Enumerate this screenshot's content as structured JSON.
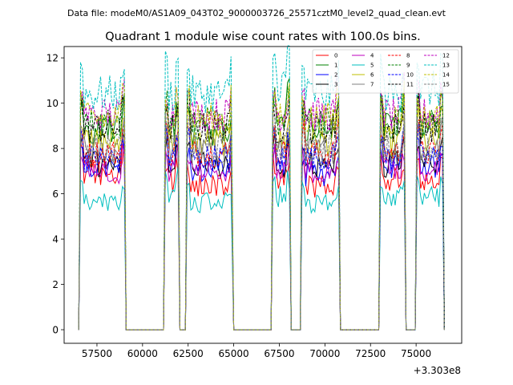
{
  "header": {
    "data_file": "Data file: modeM0/AS1A09_043T02_9000003726_25571cztM0_level2_quad_clean.evt"
  },
  "chart_data": {
    "type": "line",
    "title": "Quadrant 1 module wise count rates with 100.0s bins.",
    "xlabel": "",
    "ylabel": "",
    "x_offset_label": "+3.303e8",
    "xlim": [
      55700,
      77500
    ],
    "ylim": [
      -0.6,
      12.5
    ],
    "xticks": [
      57500,
      60000,
      62500,
      65000,
      67500,
      70000,
      72500,
      75000
    ],
    "yticks": [
      0,
      2,
      4,
      6,
      8,
      10,
      12
    ],
    "legend_position": "top-right",
    "segments": [
      [
        56600,
        59000
      ],
      [
        61250,
        61950
      ],
      [
        62450,
        64900
      ],
      [
        67150,
        68050
      ],
      [
        68750,
        70750
      ],
      [
        73050,
        74350
      ],
      [
        75050,
        76450
      ]
    ],
    "series": [
      {
        "name": "0",
        "color": "#ff0000",
        "dash": "solid",
        "level": 6.6,
        "seg_scale": [
          1.05,
          1.0,
          0.97,
          1.0,
          0.96,
          1.0,
          1.0
        ]
      },
      {
        "name": "1",
        "color": "#008000",
        "dash": "solid",
        "level": 8.8,
        "seg_scale": [
          1.0,
          1.0,
          1.0,
          1.05,
          1.02,
          1.04,
          1.02
        ]
      },
      {
        "name": "2",
        "color": "#0000ff",
        "dash": "solid",
        "level": 7.2,
        "seg_scale": [
          1.0,
          1.0,
          0.98,
          1.0,
          0.95,
          1.0,
          1.0
        ]
      },
      {
        "name": "3",
        "color": "#000000",
        "dash": "solid",
        "level": 7.3,
        "seg_scale": [
          1.0,
          1.0,
          1.0,
          1.0,
          1.0,
          1.0,
          1.0
        ]
      },
      {
        "name": "4",
        "color": "#bf00bf",
        "dash": "solid",
        "level": 7.0,
        "seg_scale": [
          1.0,
          1.0,
          1.0,
          1.0,
          1.0,
          1.0,
          1.0
        ]
      },
      {
        "name": "5",
        "color": "#00bfbf",
        "dash": "solid",
        "level": 5.6,
        "seg_scale": [
          1.0,
          1.08,
          1.0,
          1.05,
          1.0,
          1.05,
          1.05
        ]
      },
      {
        "name": "6",
        "color": "#bfbf00",
        "dash": "solid",
        "level": 8.3,
        "seg_scale": [
          1.0,
          1.0,
          1.0,
          1.0,
          1.0,
          1.0,
          1.0
        ]
      },
      {
        "name": "7",
        "color": "#808080",
        "dash": "solid",
        "level": 7.9,
        "seg_scale": [
          1.0,
          1.0,
          1.0,
          1.0,
          1.0,
          1.0,
          1.0
        ]
      },
      {
        "name": "8",
        "color": "#ff0000",
        "dash": "dashed",
        "level": 7.8,
        "seg_scale": [
          1.0,
          1.0,
          1.0,
          1.0,
          1.0,
          1.0,
          1.0
        ]
      },
      {
        "name": "9",
        "color": "#008000",
        "dash": "dashed",
        "level": 9.1,
        "seg_scale": [
          1.0,
          1.0,
          1.0,
          1.0,
          1.0,
          1.0,
          1.0
        ]
      },
      {
        "name": "10",
        "color": "#0000ff",
        "dash": "dashed",
        "level": 7.6,
        "seg_scale": [
          1.0,
          1.0,
          1.0,
          1.0,
          1.0,
          1.0,
          1.0
        ]
      },
      {
        "name": "11",
        "color": "#000000",
        "dash": "dashed",
        "level": 8.9,
        "seg_scale": [
          1.0,
          1.0,
          1.0,
          1.0,
          1.0,
          1.0,
          1.0
        ]
      },
      {
        "name": "12",
        "color": "#bf00bf",
        "dash": "dashed",
        "level": 9.5,
        "seg_scale": [
          1.0,
          1.0,
          1.0,
          1.0,
          1.0,
          1.0,
          1.0
        ]
      },
      {
        "name": "13",
        "color": "#00bfbf",
        "dash": "dashed",
        "level": 10.4,
        "seg_scale": [
          1.0,
          1.0,
          1.0,
          1.05,
          1.0,
          1.0,
          1.02
        ]
      },
      {
        "name": "14",
        "color": "#bfbf00",
        "dash": "dashed",
        "level": 9.3,
        "seg_scale": [
          1.0,
          1.0,
          1.0,
          1.0,
          1.0,
          1.0,
          1.0
        ]
      },
      {
        "name": "15",
        "color": "#808080",
        "dash": "dashed",
        "level": 8.0,
        "seg_scale": [
          1.0,
          1.0,
          1.0,
          1.0,
          1.0,
          1.0,
          1.0
        ]
      }
    ]
  }
}
